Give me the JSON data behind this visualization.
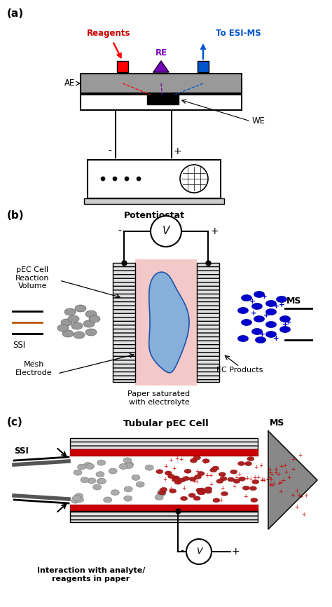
{
  "bg_color": "#ffffff",
  "label_a": "(a)",
  "label_b": "(b)",
  "label_c": "(c)",
  "reagents_label": "Reagents",
  "re_label": "RE",
  "esi_label": "To ESI-MS",
  "ae_label": "AE",
  "we_label": "WE",
  "potentiostat_label": "Potentiostat",
  "pec_label": "pEC Cell\nReaction\nVolume",
  "mesh_label": "Mesh\nElectrode",
  "paper_label": "Paper saturated\nwith electrolyte",
  "ec_label": "EC Products",
  "ms_label_b": "MS",
  "ssi_label_b": "SSI",
  "tubular_label": "Tubular pEC Cell",
  "ms_label_c": "MS",
  "ssi_label_c": "SSI",
  "interaction_label": "Interaction with analyte/\nreagents in paper",
  "reagents_color": "#cc0000",
  "re_color": "#7700bb",
  "esi_color": "#0055cc",
  "blue_particles": "#0000cc",
  "gray_particles": "#999999",
  "pink_fill": "#f2c8c8",
  "brown_line": "#bb5500"
}
